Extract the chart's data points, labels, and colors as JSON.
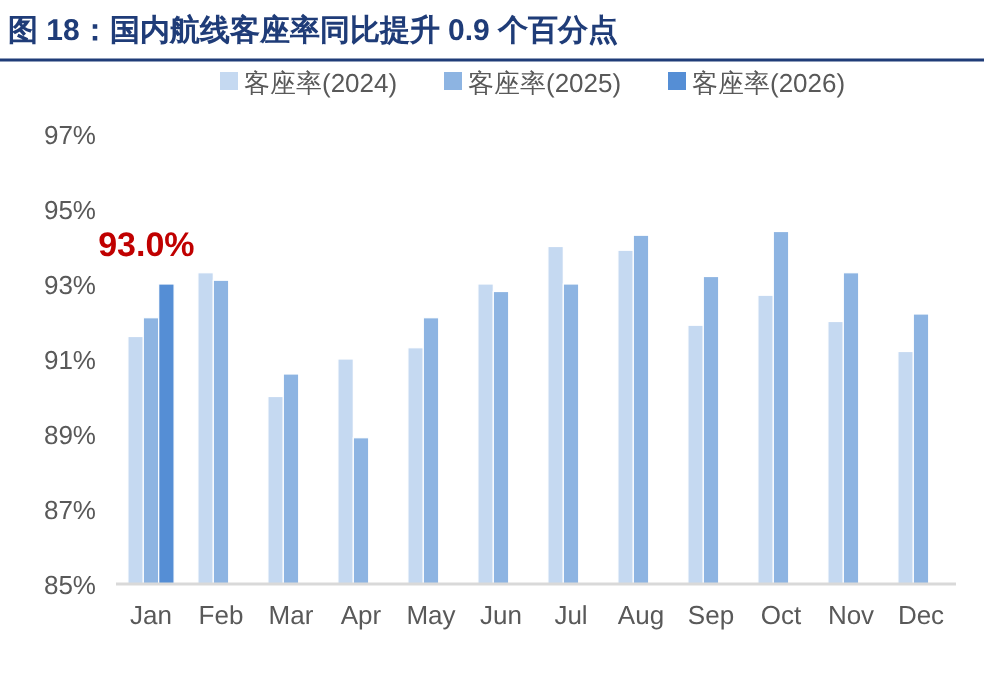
{
  "chart_data": {
    "type": "bar",
    "title": "图 18：国内航线客座率同比提升 0.9 个百分点",
    "categories": [
      "Jan",
      "Feb",
      "Mar",
      "Apr",
      "May",
      "Jun",
      "Jul",
      "Aug",
      "Sep",
      "Oct",
      "Nov",
      "Dec"
    ],
    "series": [
      {
        "name": "客座率(2024)",
        "color": "#c5d9f1",
        "values": [
          91.6,
          93.3,
          90.0,
          91.0,
          91.3,
          93.0,
          94.0,
          93.9,
          91.9,
          92.7,
          92.0,
          91.2
        ]
      },
      {
        "name": "客座率(2025)",
        "color": "#8db4e2",
        "values": [
          92.1,
          93.1,
          90.6,
          88.9,
          92.1,
          92.8,
          93.0,
          94.3,
          93.2,
          94.4,
          93.3,
          92.2
        ]
      },
      {
        "name": "客座率(2026)",
        "color": "#558ed5",
        "values": [
          93.0,
          null,
          null,
          null,
          null,
          null,
          null,
          null,
          null,
          null,
          null,
          null
        ],
        "value_labels": [
          "93.0%",
          null,
          null,
          null,
          null,
          null,
          null,
          null,
          null,
          null,
          null,
          null
        ]
      }
    ],
    "ylim": [
      85,
      97
    ],
    "yticks": [
      {
        "value": 85,
        "label": "85%"
      },
      {
        "value": 87,
        "label": "87%"
      },
      {
        "value": 89,
        "label": "89%"
      },
      {
        "value": 91,
        "label": "91%"
      },
      {
        "value": 93,
        "label": "93%"
      },
      {
        "value": 95,
        "label": "95%"
      },
      {
        "value": 97,
        "label": "97%"
      }
    ],
    "legend": "top"
  }
}
